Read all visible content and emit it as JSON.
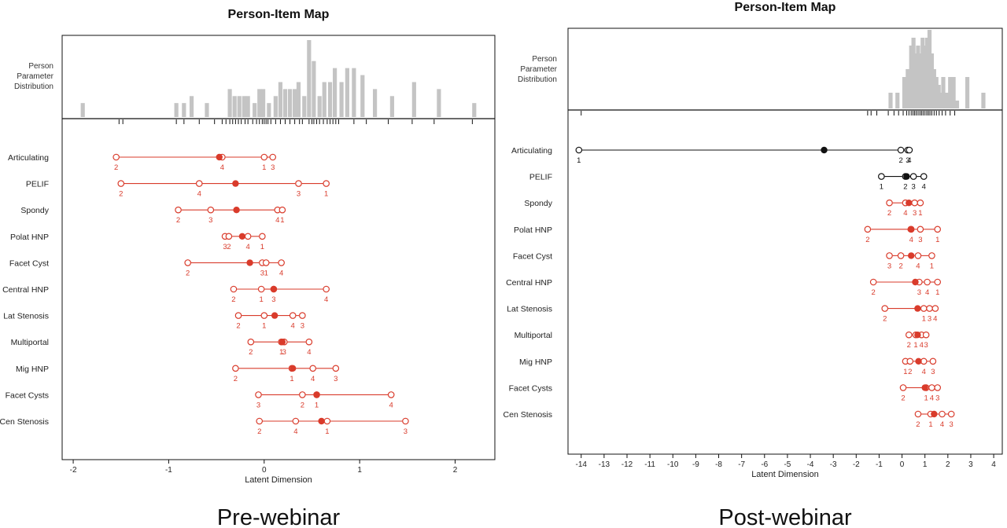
{
  "chart_data": [
    {
      "type": "scatter",
      "title": "Person-Item Map",
      "caption": "Pre-webinar",
      "person_label": [
        "Person",
        "Parameter",
        "Distribution"
      ],
      "xlabel": "Latent Dimension",
      "xlim": [
        -2.05,
        2.35
      ],
      "xticks": [
        -2,
        -1,
        0,
        1,
        2
      ],
      "person_distribution": [
        {
          "x": -1.9,
          "count": 2
        },
        {
          "x": -0.92,
          "count": 2
        },
        {
          "x": -0.84,
          "count": 2
        },
        {
          "x": -0.76,
          "count": 3
        },
        {
          "x": -0.6,
          "count": 2
        },
        {
          "x": -0.36,
          "count": 4
        },
        {
          "x": -0.31,
          "count": 3
        },
        {
          "x": -0.26,
          "count": 3
        },
        {
          "x": -0.21,
          "count": 3
        },
        {
          "x": -0.17,
          "count": 3
        },
        {
          "x": -0.1,
          "count": 2
        },
        {
          "x": -0.05,
          "count": 4
        },
        {
          "x": -0.01,
          "count": 4
        },
        {
          "x": 0.05,
          "count": 2
        },
        {
          "x": 0.12,
          "count": 3
        },
        {
          "x": 0.17,
          "count": 5
        },
        {
          "x": 0.22,
          "count": 4
        },
        {
          "x": 0.27,
          "count": 4
        },
        {
          "x": 0.32,
          "count": 4
        },
        {
          "x": 0.36,
          "count": 5
        },
        {
          "x": 0.42,
          "count": 3
        },
        {
          "x": 0.47,
          "count": 11
        },
        {
          "x": 0.52,
          "count": 8
        },
        {
          "x": 0.58,
          "count": 3
        },
        {
          "x": 0.63,
          "count": 5
        },
        {
          "x": 0.69,
          "count": 5
        },
        {
          "x": 0.74,
          "count": 7
        },
        {
          "x": 0.81,
          "count": 5
        },
        {
          "x": 0.87,
          "count": 7
        },
        {
          "x": 0.94,
          "count": 7
        },
        {
          "x": 1.03,
          "count": 6
        },
        {
          "x": 1.16,
          "count": 4
        },
        {
          "x": 1.34,
          "count": 3
        },
        {
          "x": 1.57,
          "count": 5
        },
        {
          "x": 1.83,
          "count": 4
        },
        {
          "x": 2.2,
          "count": 2
        }
      ],
      "person_ticks": [
        -1.52,
        -1.48,
        -0.92,
        -0.84,
        -0.68,
        -0.52,
        -0.44,
        -0.4,
        -0.36,
        -0.33,
        -0.3,
        -0.27,
        -0.24,
        -0.2,
        -0.17,
        -0.12,
        -0.08,
        -0.05,
        -0.02,
        0.0,
        0.02,
        0.04,
        0.07,
        0.12,
        0.17,
        0.22,
        0.27,
        0.32,
        0.37,
        0.4,
        0.47,
        0.5,
        0.52,
        0.55,
        0.58,
        0.62,
        0.66,
        0.69,
        0.72,
        0.75,
        0.78,
        0.94,
        1.07,
        1.3,
        1.55,
        1.78,
        2.18
      ],
      "items": [
        {
          "name": "Articulating",
          "color": "#d93b2b",
          "center": -0.47,
          "thresholds": [
            {
              "label": "2",
              "x": -1.55
            },
            {
              "label": "4",
              "x": -0.44
            },
            {
              "label": "1",
              "x": 0.0
            },
            {
              "label": "3",
              "x": 0.09
            }
          ]
        },
        {
          "name": "PELIF",
          "color": "#d93b2b",
          "center": -0.3,
          "thresholds": [
            {
              "label": "2",
              "x": -1.5
            },
            {
              "label": "4",
              "x": -0.68
            },
            {
              "label": "3",
              "x": 0.36
            },
            {
              "label": "1",
              "x": 0.65
            }
          ]
        },
        {
          "name": "Spondy",
          "color": "#d93b2b",
          "center": -0.29,
          "thresholds": [
            {
              "label": "2",
              "x": -0.9
            },
            {
              "label": "3",
              "x": -0.56
            },
            {
              "label": "4",
              "x": 0.14
            },
            {
              "label": "1",
              "x": 0.19
            }
          ]
        },
        {
          "name": "Polat HNP",
          "color": "#d93b2b",
          "center": -0.23,
          "thresholds": [
            {
              "label": "3",
              "x": -0.41
            },
            {
              "label": "2",
              "x": -0.37
            },
            {
              "label": "4",
              "x": -0.17
            },
            {
              "label": "1",
              "x": -0.02
            }
          ]
        },
        {
          "name": "Facet Cyst",
          "color": "#d93b2b",
          "center": -0.15,
          "thresholds": [
            {
              "label": "2",
              "x": -0.8
            },
            {
              "label": "3",
              "x": -0.02
            },
            {
              "label": "1",
              "x": 0.02
            },
            {
              "label": "4",
              "x": 0.18
            }
          ]
        },
        {
          "name": "Central HNP",
          "color": "#d93b2b",
          "center": 0.1,
          "thresholds": [
            {
              "label": "2",
              "x": -0.32
            },
            {
              "label": "1",
              "x": -0.03
            },
            {
              "label": "3",
              "x": 0.1
            },
            {
              "label": "4",
              "x": 0.65
            }
          ]
        },
        {
          "name": "Lat Stenosis",
          "color": "#d93b2b",
          "center": 0.11,
          "thresholds": [
            {
              "label": "2",
              "x": -0.27
            },
            {
              "label": "1",
              "x": 0.0
            },
            {
              "label": "4",
              "x": 0.3
            },
            {
              "label": "3",
              "x": 0.4
            }
          ]
        },
        {
          "name": "Multiportal",
          "color": "#d93b2b",
          "center": 0.19,
          "thresholds": [
            {
              "label": "2",
              "x": -0.14
            },
            {
              "label": "1",
              "x": 0.18
            },
            {
              "label": "3",
              "x": 0.21
            },
            {
              "label": "4",
              "x": 0.47
            }
          ]
        },
        {
          "name": "Mig HNP",
          "color": "#d93b2b",
          "center": 0.3,
          "thresholds": [
            {
              "label": "2",
              "x": -0.3
            },
            {
              "label": "1",
              "x": 0.29
            },
            {
              "label": "4",
              "x": 0.51
            },
            {
              "label": "3",
              "x": 0.75
            }
          ]
        },
        {
          "name": "Facet Cysts",
          "color": "#d93b2b",
          "center": 0.55,
          "thresholds": [
            {
              "label": "3",
              "x": -0.06
            },
            {
              "label": "2",
              "x": 0.4
            },
            {
              "label": "1",
              "x": 0.55
            },
            {
              "label": "4",
              "x": 1.33
            }
          ]
        },
        {
          "name": "Cen Stenosis",
          "color": "#d93b2b",
          "center": 0.6,
          "thresholds": [
            {
              "label": "2",
              "x": -0.05
            },
            {
              "label": "4",
              "x": 0.33
            },
            {
              "label": "1",
              "x": 0.66
            },
            {
              "label": "3",
              "x": 1.48
            }
          ]
        }
      ]
    },
    {
      "type": "scatter",
      "title": "Person-Item Map",
      "caption": "Post-webinar",
      "person_label": [
        "Person",
        "Parameter",
        "Distribution"
      ],
      "xlabel": "Latent Dimension",
      "xlim": [
        -14.3,
        4.1
      ],
      "xticks": [
        -14,
        -13,
        -12,
        -11,
        -10,
        -9,
        -8,
        -7,
        -6,
        -5,
        -4,
        -3,
        -2,
        -1,
        0,
        1,
        2,
        3,
        4
      ],
      "person_distribution": [
        {
          "x": -0.5,
          "count": 2
        },
        {
          "x": -0.2,
          "count": 2
        },
        {
          "x": 0.1,
          "count": 4
        },
        {
          "x": 0.25,
          "count": 5
        },
        {
          "x": 0.4,
          "count": 8
        },
        {
          "x": 0.5,
          "count": 9
        },
        {
          "x": 0.6,
          "count": 7
        },
        {
          "x": 0.7,
          "count": 8
        },
        {
          "x": 0.8,
          "count": 7
        },
        {
          "x": 0.9,
          "count": 9
        },
        {
          "x": 1.0,
          "count": 8
        },
        {
          "x": 1.1,
          "count": 9
        },
        {
          "x": 1.2,
          "count": 10
        },
        {
          "x": 1.3,
          "count": 7
        },
        {
          "x": 1.4,
          "count": 5
        },
        {
          "x": 1.5,
          "count": 4
        },
        {
          "x": 1.6,
          "count": 3
        },
        {
          "x": 1.7,
          "count": 2
        },
        {
          "x": 1.8,
          "count": 4
        },
        {
          "x": 1.95,
          "count": 2
        },
        {
          "x": 2.1,
          "count": 4
        },
        {
          "x": 2.25,
          "count": 4
        },
        {
          "x": 2.4,
          "count": 1
        },
        {
          "x": 2.85,
          "count": 4
        },
        {
          "x": 3.55,
          "count": 2
        }
      ],
      "person_ticks": [
        -14.0,
        -1.5,
        -1.35,
        -1.1,
        -0.6,
        -0.35,
        -0.15,
        0.05,
        0.2,
        0.3,
        0.4,
        0.48,
        0.55,
        0.62,
        0.7,
        0.78,
        0.85,
        0.92,
        1.0,
        1.08,
        1.15,
        1.22,
        1.3,
        1.4,
        1.5,
        1.62,
        1.75,
        1.9,
        2.1,
        2.3
      ],
      "items": [
        {
          "name": "Articulating",
          "color": "#111111",
          "center": -3.4,
          "thresholds": [
            {
              "label": "1",
              "x": -14.1
            },
            {
              "label": "2",
              "x": -0.05
            },
            {
              "label": "3",
              "x": 0.25
            },
            {
              "label": "4",
              "x": 0.32
            }
          ]
        },
        {
          "name": "PELIF",
          "color": "#111111",
          "center": 0.2,
          "thresholds": [
            {
              "label": "1",
              "x": -0.9
            },
            {
              "label": "2",
              "x": 0.15
            },
            {
              "label": "3",
              "x": 0.5
            },
            {
              "label": "4",
              "x": 0.95
            }
          ]
        },
        {
          "name": "Spondy",
          "color": "#d93b2b",
          "center": 0.3,
          "thresholds": [
            {
              "label": "2",
              "x": -0.55
            },
            {
              "label": "4",
              "x": 0.15
            },
            {
              "label": "3",
              "x": 0.55
            },
            {
              "label": "1",
              "x": 0.8
            }
          ]
        },
        {
          "name": "Polat HNP",
          "color": "#d93b2b",
          "center": 0.38,
          "thresholds": [
            {
              "label": "2",
              "x": -1.5
            },
            {
              "label": "4",
              "x": 0.4
            },
            {
              "label": "3",
              "x": 0.8
            },
            {
              "label": "1",
              "x": 1.55
            }
          ]
        },
        {
          "name": "Facet Cyst",
          "color": "#d93b2b",
          "center": 0.4,
          "thresholds": [
            {
              "label": "3",
              "x": -0.55
            },
            {
              "label": "2",
              "x": -0.05
            },
            {
              "label": "4",
              "x": 0.7
            },
            {
              "label": "1",
              "x": 1.3
            }
          ]
        },
        {
          "name": "Central HNP",
          "color": "#d93b2b",
          "center": 0.58,
          "thresholds": [
            {
              "label": "2",
              "x": -1.25
            },
            {
              "label": "3",
              "x": 0.75
            },
            {
              "label": "4",
              "x": 1.1
            },
            {
              "label": "1",
              "x": 1.55
            }
          ]
        },
        {
          "name": "Lat Stenosis",
          "color": "#d93b2b",
          "center": 0.68,
          "thresholds": [
            {
              "label": "2",
              "x": -0.75
            },
            {
              "label": "1",
              "x": 0.95
            },
            {
              "label": "3",
              "x": 1.2
            },
            {
              "label": "4",
              "x": 1.45
            }
          ]
        },
        {
          "name": "Multiportal",
          "color": "#d93b2b",
          "center": 0.68,
          "thresholds": [
            {
              "label": "2",
              "x": 0.3
            },
            {
              "label": "1",
              "x": 0.6
            },
            {
              "label": "4",
              "x": 0.85
            },
            {
              "label": "3",
              "x": 1.05
            }
          ]
        },
        {
          "name": "Mig HNP",
          "color": "#d93b2b",
          "center": 0.72,
          "thresholds": [
            {
              "label": "1",
              "x": 0.15
            },
            {
              "label": "2",
              "x": 0.35
            },
            {
              "label": "4",
              "x": 0.95
            },
            {
              "label": "3",
              "x": 1.35
            }
          ]
        },
        {
          "name": "Facet Cysts",
          "color": "#d93b2b",
          "center": 1.0,
          "thresholds": [
            {
              "label": "2",
              "x": 0.05
            },
            {
              "label": "1",
              "x": 1.05
            },
            {
              "label": "4",
              "x": 1.3
            },
            {
              "label": "3",
              "x": 1.55
            }
          ]
        },
        {
          "name": "Cen Stenosis",
          "color": "#d93b2b",
          "center": 1.4,
          "thresholds": [
            {
              "label": "2",
              "x": 0.7
            },
            {
              "label": "1",
              "x": 1.25
            },
            {
              "label": "4",
              "x": 1.75
            },
            {
              "label": "3",
              "x": 2.15
            }
          ]
        }
      ]
    }
  ]
}
